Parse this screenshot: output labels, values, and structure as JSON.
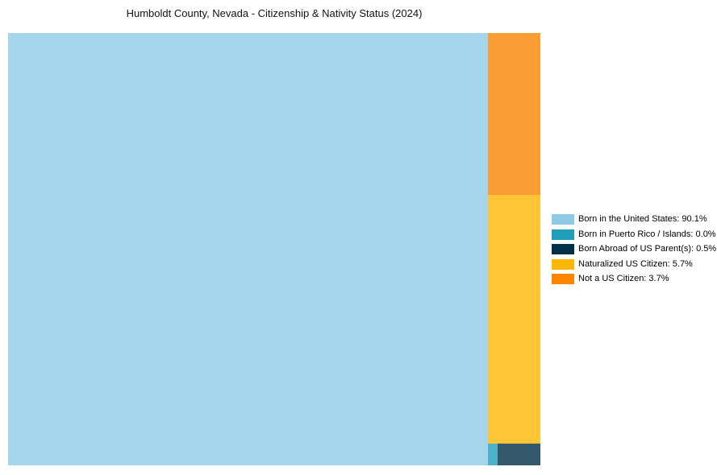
{
  "chart_data": {
    "type": "treemap",
    "title": "Humboldt County, Nevada - Citizenship & Nativity Status (2024)",
    "legend_position": "right",
    "background_color": "#ffffff",
    "cell_fill_opacity": 0.8,
    "items": [
      {
        "label": "Born in the United States",
        "value": 90.1,
        "display": "Born in the United States: 90.1%",
        "color": "#8ECAE6"
      },
      {
        "label": "Born in Puerto Rico / Islands",
        "value": 0.0,
        "display": "Born in Puerto Rico / Islands: 0.0%",
        "color": "#219EBC"
      },
      {
        "label": "Born Abroad of US Parent(s)",
        "value": 0.5,
        "display": "Born Abroad of US Parent(s): 0.5%",
        "color": "#023047"
      },
      {
        "label": "Naturalized US Citizen",
        "value": 5.7,
        "display": "Naturalized US Citizen: 5.7%",
        "color": "#FFB703"
      },
      {
        "label": "Not a US Citizen",
        "value": 3.7,
        "display": "Not a US Citizen: 3.7%",
        "color": "#FB8500"
      }
    ]
  }
}
